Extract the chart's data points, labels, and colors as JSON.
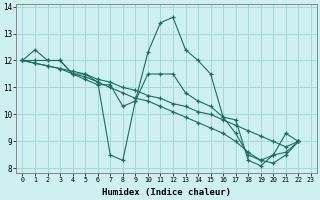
{
  "xlabel": "Humidex (Indice chaleur)",
  "xlim_min": -0.5,
  "xlim_max": 23.5,
  "ylim_min": 7.85,
  "ylim_max": 14.1,
  "yticks": [
    8,
    9,
    10,
    11,
    12,
    13,
    14
  ],
  "xticks": [
    0,
    1,
    2,
    3,
    4,
    5,
    6,
    7,
    8,
    9,
    10,
    11,
    12,
    13,
    14,
    15,
    16,
    17,
    18,
    19,
    20,
    21,
    22,
    23
  ],
  "bg_color": "#cef0f0",
  "grid_color": "#a8d8d8",
  "line_color": "#1a6e60",
  "lines": [
    [
      12.0,
      12.4,
      12.0,
      12.0,
      11.5,
      11.5,
      11.2,
      8.5,
      8.3,
      10.5,
      12.3,
      13.4,
      13.6,
      12.4,
      12.0,
      11.5,
      9.9,
      9.8,
      8.3,
      8.1,
      8.5,
      9.3,
      9.0
    ],
    [
      12.0,
      12.0,
      12.0,
      12.0,
      11.5,
      11.3,
      11.1,
      11.1,
      10.3,
      10.5,
      11.5,
      11.5,
      11.5,
      10.8,
      10.5,
      10.3,
      9.9,
      9.3,
      8.5,
      8.3,
      8.5,
      8.6,
      9.0
    ],
    [
      12.0,
      11.9,
      11.8,
      11.7,
      11.5,
      11.4,
      11.2,
      11.0,
      10.8,
      10.6,
      10.5,
      10.3,
      10.1,
      9.9,
      9.7,
      9.5,
      9.3,
      9.0,
      8.6,
      8.3,
      8.2,
      8.5,
      9.0
    ],
    [
      12.0,
      11.9,
      11.8,
      11.7,
      11.6,
      11.5,
      11.3,
      11.2,
      11.0,
      10.9,
      10.7,
      10.6,
      10.4,
      10.3,
      10.1,
      10.0,
      9.8,
      9.6,
      9.4,
      9.2,
      9.0,
      8.8,
      9.0
    ]
  ]
}
